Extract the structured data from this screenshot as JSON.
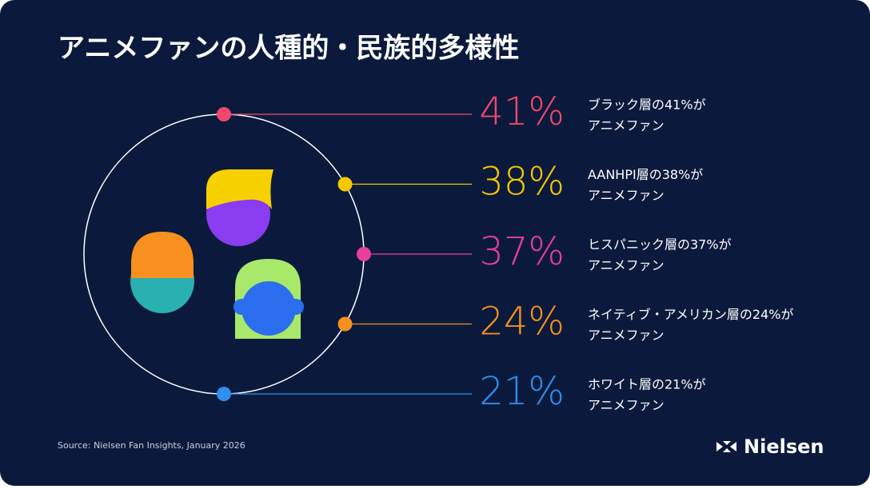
{
  "title": "アニメファンの人種的・民族的多様性",
  "items": [
    {
      "percent": "41%",
      "line1": "ブラック層の41%が",
      "line2": "アニメファン",
      "color": "#f2486b"
    },
    {
      "percent": "38%",
      "line1": "AANHPI層の38%が",
      "line2": "アニメファン",
      "color": "#f7c800"
    },
    {
      "percent": "37%",
      "line1": "ヒスパニック層の37%が",
      "line2": "アニメファン",
      "color": "#e83e9c"
    },
    {
      "percent": "24%",
      "line1": "ネイティブ・アメリカン層の24%が",
      "line2": "アニメファン",
      "color": "#f7901e"
    },
    {
      "percent": "21%",
      "line1": "ホワイト層の21%が",
      "line2": "アニメファン",
      "color": "#2e8ff0"
    }
  ],
  "source": "Source: Nielsen Fan Insights, January 2026",
  "logo": "Nielsen"
}
